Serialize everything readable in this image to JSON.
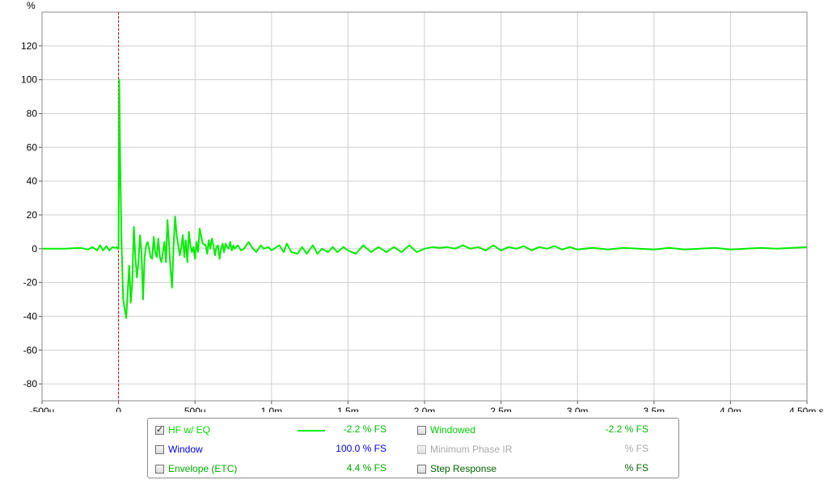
{
  "chart_data": {
    "type": "line",
    "ylabel": "%",
    "x_unit": "s",
    "xlim": [
      -0.0005,
      0.0045
    ],
    "ylim": [
      -90,
      140
    ],
    "y_ticks": [
      120,
      100,
      80,
      60,
      40,
      20,
      0,
      -20,
      -40,
      -60,
      -80
    ],
    "y_tick_labels": [
      "120",
      "100",
      "80",
      "60",
      "40",
      "20",
      "0",
      "-20",
      "-40",
      "-60",
      "-80"
    ],
    "x_ticks": [
      -0.0005,
      0,
      0.0005,
      0.001,
      0.0015,
      0.002,
      0.0025,
      0.003,
      0.0035,
      0.004,
      0.0045
    ],
    "x_tick_labels": [
      "-500u",
      "0",
      "500u",
      "1.0m",
      "1.5m",
      "2.0m",
      "2.5m",
      "3.0m",
      "3.5m",
      "4.0m",
      "4.50m s"
    ],
    "grid": true,
    "marker_x": 0,
    "marker_color": "#cc0000",
    "series": [
      {
        "name": "HF w/ EQ",
        "color": "#00ee00",
        "x": [
          -0.0005,
          -0.00035,
          -0.00025,
          -0.0002,
          -0.00017,
          -0.00014,
          -0.00012,
          -0.0001,
          -8e-05,
          -6e-05,
          -4e-05,
          -2e-05,
          -1e-05,
          -5e-06,
          0,
          5e-06,
          1e-05,
          2e-05,
          3e-05,
          5e-05,
          7e-05,
          8e-05,
          9e-05,
          0.0001,
          0.00011,
          0.00012,
          0.00013,
          0.00014,
          0.00015,
          0.00016,
          0.00017,
          0.00018,
          0.00019,
          0.0002,
          0.00021,
          0.00022,
          0.00023,
          0.00024,
          0.00025,
          0.00026,
          0.00027,
          0.00028,
          0.00029,
          0.0003,
          0.00031,
          0.00032,
          0.00033,
          0.00034,
          0.00035,
          0.00036,
          0.00037,
          0.00038,
          0.0004,
          0.00041,
          0.00042,
          0.00043,
          0.00044,
          0.00045,
          0.00046,
          0.00047,
          0.00048,
          0.00049,
          0.0005,
          0.00051,
          0.00052,
          0.00053,
          0.00055,
          0.00057,
          0.00058,
          0.00059,
          0.0006,
          0.00061,
          0.00062,
          0.00063,
          0.00064,
          0.00065,
          0.00066,
          0.00067,
          0.00068,
          0.00069,
          0.0007,
          0.00071,
          0.00072,
          0.00073,
          0.00074,
          0.00075,
          0.00076,
          0.00078,
          0.0008,
          0.00082,
          0.00085,
          0.00087,
          0.0009,
          0.00093,
          0.00095,
          0.00098,
          0.001,
          0.00105,
          0.00108,
          0.0011,
          0.00113,
          0.00117,
          0.0012,
          0.00123,
          0.00127,
          0.0013,
          0.00133,
          0.00137,
          0.0014,
          0.00143,
          0.00147,
          0.0015,
          0.00155,
          0.0016,
          0.00165,
          0.0017,
          0.00175,
          0.0018,
          0.00185,
          0.0019,
          0.00195,
          0.002,
          0.00205,
          0.0021,
          0.00215,
          0.0022,
          0.00225,
          0.0023,
          0.00235,
          0.0024,
          0.00245,
          0.0025,
          0.00255,
          0.0026,
          0.00265,
          0.0027,
          0.00275,
          0.0028,
          0.00285,
          0.0029,
          0.00295,
          0.003,
          0.0031,
          0.0032,
          0.0033,
          0.0034,
          0.0035,
          0.0036,
          0.0037,
          0.0038,
          0.0039,
          0.004,
          0.0041,
          0.0042,
          0.0043,
          0.0044,
          0.0045
        ],
        "y": [
          0,
          0,
          0.5,
          -0.5,
          1,
          -1,
          2,
          -1,
          1.5,
          -1,
          1,
          0.5,
          1,
          0,
          0,
          100,
          55,
          2,
          -30,
          -41,
          -10,
          -32,
          -20,
          13,
          -5,
          -17,
          -8,
          8,
          -2,
          -30,
          -5,
          2,
          4,
          0,
          -5,
          -6,
          7,
          -2,
          -5,
          6,
          -5,
          -8,
          -2,
          4,
          -8,
          17,
          3,
          -12,
          -23,
          2,
          19,
          8,
          -4,
          1,
          8,
          -5,
          5,
          -8,
          10,
          2,
          -2,
          1,
          -6,
          4,
          -2,
          12,
          3,
          2,
          -3,
          5,
          0,
          6,
          2,
          -4,
          1,
          2,
          -6,
          0,
          3,
          -2,
          3,
          1,
          0,
          4,
          -1,
          2,
          0,
          2,
          -1,
          0,
          4,
          1,
          -2,
          2,
          0,
          1,
          -1,
          2,
          -2,
          3,
          -2,
          -3,
          1,
          -3,
          2,
          -3,
          0,
          -2,
          1,
          -2,
          1,
          -1,
          -3,
          2,
          -2,
          1,
          -2,
          1,
          -2,
          2,
          -2,
          0,
          1,
          0.5,
          1,
          0,
          2,
          0,
          1,
          -1,
          2,
          -1,
          1,
          0,
          1.5,
          -1,
          1,
          0,
          1.5,
          -0.5,
          1,
          -0.5,
          0.5,
          -0.5,
          0.5,
          0,
          -0.5,
          0.5,
          -0.5,
          0,
          0.5,
          -0.5,
          0,
          0.5,
          0,
          0.5,
          1
        ]
      }
    ]
  },
  "legend": {
    "items": [
      {
        "label": "HF w/ EQ",
        "checked": true,
        "disabled": false,
        "value": "-2.2 % FS",
        "color": "#00dd00",
        "value_color": "#00bb00"
      },
      {
        "label": "Window",
        "checked": false,
        "disabled": false,
        "value": "100.0 % FS",
        "color": "#0000dd",
        "value_color": "#0000dd"
      },
      {
        "label": "Envelope (ETC)",
        "checked": false,
        "disabled": false,
        "value": "4.4 % FS",
        "color": "#00aa00",
        "value_color": "#00aa00"
      },
      {
        "label": "Windowed",
        "checked": false,
        "disabled": false,
        "value": "-2.2 % FS",
        "color": "#00cc00",
        "value_color": "#00bb00"
      },
      {
        "label": "Minimum Phase IR",
        "checked": false,
        "disabled": true,
        "value": "% FS",
        "color": "#a8a8a8",
        "value_color": "#a8a8a8"
      },
      {
        "label": "Step Response",
        "checked": false,
        "disabled": false,
        "value": "% FS",
        "color": "#006600",
        "value_color": "#006600"
      }
    ]
  }
}
